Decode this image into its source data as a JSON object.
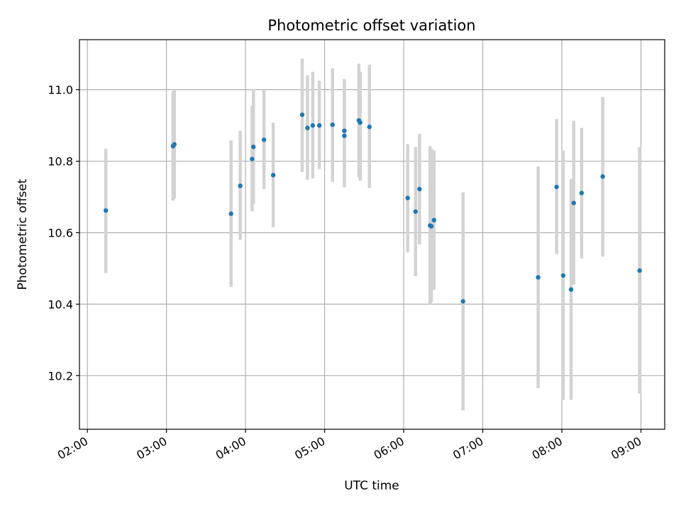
{
  "chart_data": {
    "type": "scatter",
    "title": "Photometric offset variation",
    "xlabel": "UTC time",
    "ylabel": "Photometric offset",
    "x_ticks": [
      "02:00",
      "03:00",
      "04:00",
      "05:00",
      "06:00",
      "07:00",
      "08:00",
      "09:00"
    ],
    "y_ticks": [
      "10.2",
      "10.4",
      "10.6",
      "10.8",
      "11.0"
    ],
    "xlim": [
      "01:54",
      "09:18"
    ],
    "ylim": [
      10.05,
      11.14
    ],
    "grid": true,
    "legend": "none",
    "marker_color": "#1f77b4",
    "errorbar_color": "#d3d3d3",
    "points": [
      {
        "x": "02:14",
        "y": 10.662,
        "ylow": 10.487,
        "yhigh": 10.835
      },
      {
        "x": "03:05",
        "y": 10.842,
        "ylow": 10.69,
        "yhigh": 10.995
      },
      {
        "x": "03:06",
        "y": 10.847,
        "ylow": 10.695,
        "yhigh": 11.0
      },
      {
        "x": "03:49",
        "y": 10.653,
        "ylow": 10.448,
        "yhigh": 10.858
      },
      {
        "x": "03:56",
        "y": 10.731,
        "ylow": 10.58,
        "yhigh": 10.885
      },
      {
        "x": "04:05",
        "y": 10.806,
        "ylow": 10.66,
        "yhigh": 10.955
      },
      {
        "x": "04:06",
        "y": 10.84,
        "ylow": 10.68,
        "yhigh": 11.002
      },
      {
        "x": "04:14",
        "y": 10.86,
        "ylow": 10.722,
        "yhigh": 11.0
      },
      {
        "x": "04:21",
        "y": 10.761,
        "ylow": 10.615,
        "yhigh": 10.908
      },
      {
        "x": "04:43",
        "y": 10.93,
        "ylow": 10.77,
        "yhigh": 11.087
      },
      {
        "x": "04:47",
        "y": 10.893,
        "ylow": 10.748,
        "yhigh": 11.04
      },
      {
        "x": "04:51",
        "y": 10.9,
        "ylow": 10.752,
        "yhigh": 11.05
      },
      {
        "x": "04:56",
        "y": 10.9,
        "ylow": 10.778,
        "yhigh": 11.025
      },
      {
        "x": "05:06",
        "y": 10.902,
        "ylow": 10.742,
        "yhigh": 11.06
      },
      {
        "x": "05:15",
        "y": 10.871,
        "ylow": 10.727,
        "yhigh": 11.018
      },
      {
        "x": "05:15",
        "y": 10.885,
        "ylow": 10.735,
        "yhigh": 11.03
      },
      {
        "x": "05:26",
        "y": 10.914,
        "ylow": 10.755,
        "yhigh": 11.073
      },
      {
        "x": "05:27",
        "y": 10.908,
        "ylow": 10.745,
        "yhigh": 11.05
      },
      {
        "x": "05:34",
        "y": 10.896,
        "ylow": 10.725,
        "yhigh": 11.07
      },
      {
        "x": "06:03",
        "y": 10.697,
        "ylow": 10.545,
        "yhigh": 10.848
      },
      {
        "x": "06:09",
        "y": 10.659,
        "ylow": 10.478,
        "yhigh": 10.84
      },
      {
        "x": "06:12",
        "y": 10.722,
        "ylow": 10.567,
        "yhigh": 10.877
      },
      {
        "x": "06:20",
        "y": 10.62,
        "ylow": 10.4,
        "yhigh": 10.842
      },
      {
        "x": "06:21",
        "y": 10.618,
        "ylow": 10.405,
        "yhigh": 10.835
      },
      {
        "x": "06:23",
        "y": 10.635,
        "ylow": 10.44,
        "yhigh": 10.83
      },
      {
        "x": "06:45",
        "y": 10.408,
        "ylow": 10.103,
        "yhigh": 10.713
      },
      {
        "x": "07:42",
        "y": 10.475,
        "ylow": 10.165,
        "yhigh": 10.785
      },
      {
        "x": "07:56",
        "y": 10.728,
        "ylow": 10.54,
        "yhigh": 10.918
      },
      {
        "x": "08:01",
        "y": 10.48,
        "ylow": 10.132,
        "yhigh": 10.83
      },
      {
        "x": "08:07",
        "y": 10.441,
        "ylow": 10.132,
        "yhigh": 10.75
      },
      {
        "x": "08:09",
        "y": 10.683,
        "ylow": 10.455,
        "yhigh": 10.913
      },
      {
        "x": "08:15",
        "y": 10.711,
        "ylow": 10.528,
        "yhigh": 10.893
      },
      {
        "x": "08:31",
        "y": 10.757,
        "ylow": 10.533,
        "yhigh": 10.98
      },
      {
        "x": "08:59",
        "y": 10.494,
        "ylow": 10.15,
        "yhigh": 10.84
      }
    ]
  }
}
